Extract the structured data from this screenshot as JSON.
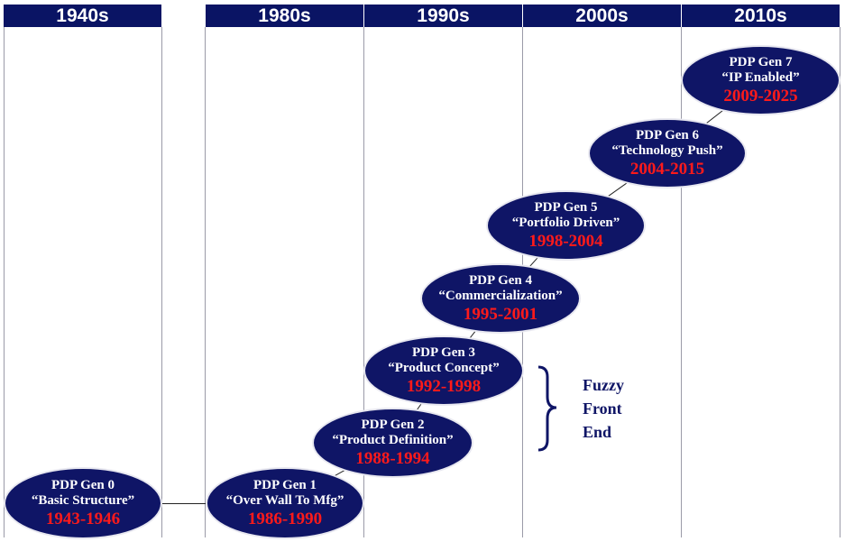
{
  "decades": [
    "1940s",
    "1980s",
    "1990s",
    "2000s",
    "2010s"
  ],
  "generations": [
    {
      "name": "PDP Gen 0",
      "tag": "“Basic Structure”",
      "years": "1943-1946"
    },
    {
      "name": "PDP Gen 1",
      "tag": "“Over Wall To Mfg”",
      "years": "1986-1990"
    },
    {
      "name": "PDP Gen 2",
      "tag": "“Product Definition”",
      "years": "1988-1994"
    },
    {
      "name": "PDP Gen 3",
      "tag": "“Product Concept”",
      "years": "1992-1998"
    },
    {
      "name": "PDP Gen 4",
      "tag": "“Commercialization”",
      "years": "1995-2001"
    },
    {
      "name": "PDP Gen 5",
      "tag": "“Portfolio Driven”",
      "years": "1998-2004"
    },
    {
      "name": "PDP Gen 6",
      "tag": "“Technology Push”",
      "years": "2004-2015"
    },
    {
      "name": "PDP Gen 7",
      "tag": "“IP Enabled”",
      "years": "2009-2025"
    }
  ],
  "annotation": {
    "line1": "Fuzzy",
    "line2": "Front",
    "line3": "End"
  },
  "colors": {
    "header_bg": "#0a1464",
    "node_bg": "#0f1566",
    "years_text": "#ff1a1a"
  }
}
